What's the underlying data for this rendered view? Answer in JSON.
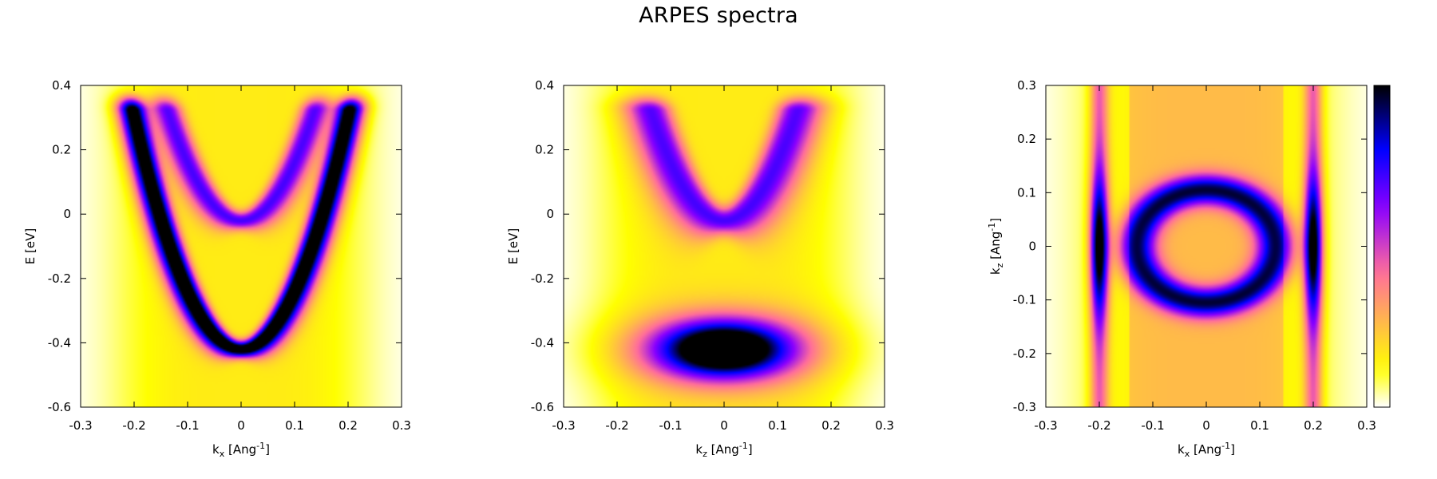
{
  "title": "ARPES spectra",
  "colormap": [
    "#ffffff",
    "#ffff00",
    "#ff6d9b",
    "#8a00ff",
    "#0000ff",
    "#000000"
  ],
  "chart_data": [
    {
      "type": "heatmap",
      "xlabel": {
        "base": "k",
        "sub": "x",
        "rest": " [Ang",
        "sup": "-1",
        "end": "]"
      },
      "ylabel": {
        "base": "E [eV]"
      },
      "xlim": [
        -0.3,
        0.3
      ],
      "ylim": [
        -0.6,
        0.4
      ],
      "xticks": [
        "-0.3",
        "-0.2",
        "-0.1",
        "0",
        "0.1",
        "0.2",
        "0.3"
      ],
      "yticks": [
        "-0.6",
        "-0.4",
        "-0.2",
        "0",
        "0.2",
        "0.4"
      ],
      "features": [
        {
          "kind": "parabola",
          "vertex": [
            0,
            -0.42
          ],
          "curvature": 18,
          "width": 0.018,
          "peak": 1.0
        },
        {
          "kind": "parabola",
          "vertex": [
            0,
            -0.02
          ],
          "curvature": 18,
          "width": 0.02,
          "peak": 0.55
        }
      ]
    },
    {
      "type": "heatmap",
      "xlabel": {
        "base": "k",
        "sub": "z",
        "rest": " [Ang",
        "sup": "-1",
        "end": "]"
      },
      "ylabel": {
        "base": "E [eV]"
      },
      "xlim": [
        -0.3,
        0.3
      ],
      "ylim": [
        -0.6,
        0.4
      ],
      "xticks": [
        "-0.3",
        "-0.2",
        "-0.1",
        "0",
        "0.1",
        "0.2",
        "0.3"
      ],
      "yticks": [
        "-0.6",
        "-0.4",
        "-0.2",
        "0",
        "0.2",
        "0.4"
      ],
      "features": [
        {
          "kind": "blob",
          "center": [
            0,
            -0.42
          ],
          "sigma": [
            0.085,
            0.06
          ],
          "peak": 1.0
        },
        {
          "kind": "parabola",
          "vertex": [
            0,
            -0.02
          ],
          "curvature": 18,
          "width": 0.03,
          "peak": 0.55
        }
      ]
    },
    {
      "type": "heatmap",
      "xlabel": {
        "base": "k",
        "sub": "x",
        "rest": " [Ang",
        "sup": "-1",
        "end": "]"
      },
      "ylabel": {
        "base": "k",
        "sub": "z",
        "rest": " [Ang",
        "sup": "-1",
        "end": "]"
      },
      "xlim": [
        -0.3,
        0.3
      ],
      "ylim": [
        -0.3,
        0.3
      ],
      "xticks": [
        "-0.3",
        "-0.2",
        "-0.1",
        "0",
        "0.1",
        "0.2",
        "0.3"
      ],
      "yticks": [
        "-0.3",
        "-0.2",
        "-0.1",
        "0",
        "0.1",
        "0.2",
        "0.3"
      ],
      "colorbar": true,
      "features": [
        {
          "kind": "line",
          "x": -0.2,
          "width": 0.012,
          "sigma_y": 0.09,
          "peak": 1.0
        },
        {
          "kind": "line",
          "x": 0.2,
          "width": 0.012,
          "sigma_y": 0.09,
          "peak": 1.0
        },
        {
          "kind": "ellipse",
          "center": [
            0,
            0
          ],
          "radii": [
            0.13,
            0.105
          ],
          "width": 0.02,
          "peak": 0.7
        }
      ]
    }
  ]
}
